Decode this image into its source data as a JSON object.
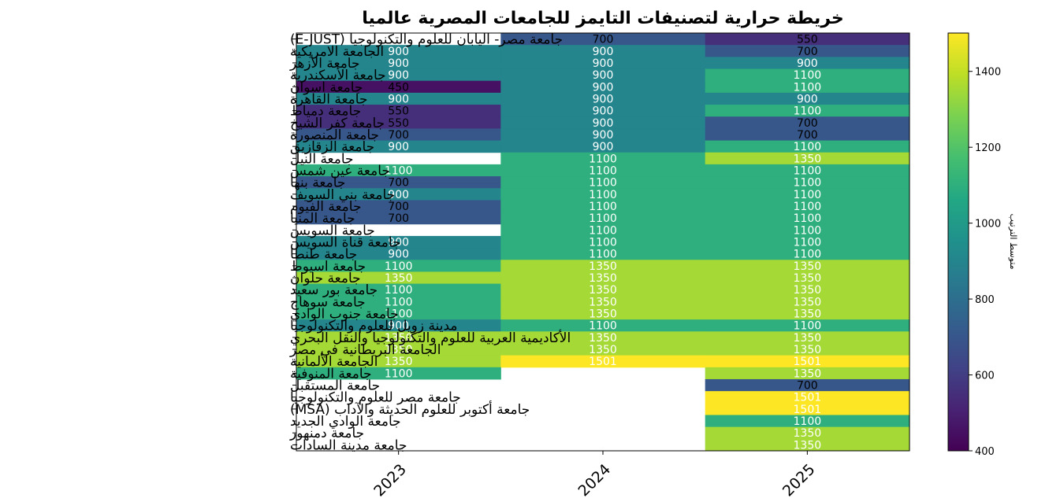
{
  "chart_data": {
    "type": "heatmap",
    "title": "خريطة حرارية لتصنيفات التايمز للجامعات المصرية عالميا",
    "colorbar_label": "متوسط الترتيب",
    "colorbar_range": [
      400,
      1501
    ],
    "colorbar_ticks": [
      400,
      600,
      800,
      1000,
      1200,
      1400
    ],
    "colormap": "viridis",
    "x": [
      "2023",
      "2024",
      "2025"
    ],
    "y": [
      "جامعة مصر- اليابان للعلوم والتكنولوجيا (E-JUST)",
      "الجامعة الامريكية",
      "جامعة الأزهر",
      "جامعة الأسكندرية",
      "جامعة اسوان",
      "جامعة القاهرة",
      "جامعة دمياط",
      "جامعة كفر الشيخ",
      "جامعة المنصورة",
      "جامعة الزقازيق",
      "جامعة النيل",
      "جامعة عين شمس",
      "جامعة بنها",
      "جامعة بني السويف",
      "جامعة الفيوم",
      "جامعة المنيا",
      "جامعة السويس",
      "جامعة قناة السويس",
      "جامعة طنطا",
      "جامعة اسيوط",
      "جامعة حلوان",
      "جامعة بور سعيد",
      "جامعة سوهاج",
      "جامعة جنوب الوادي",
      "مدينة زويل للعلوم والتكنولوجيا",
      "الأكاديمية العربية للعلوم والتكنولوجيا والنقل البحري",
      "الجامعة البريطانية في مصر",
      "الجامعة الألمانية",
      "جامعة المنوفية",
      "جامعة المستقبل",
      "جامعة مصر للعلوم والتكنولوجيا",
      "جامعة أكتوبر للعلوم الحديثة والآداب (MSA)",
      "جامعة الوادي الجديد",
      "جامعة دمنهور",
      "جامعة مدينة السادات"
    ],
    "values": [
      [
        null,
        700,
        550
      ],
      [
        900,
        900,
        700
      ],
      [
        900,
        900,
        900
      ],
      [
        900,
        900,
        1100
      ],
      [
        450,
        900,
        1100
      ],
      [
        900,
        900,
        900
      ],
      [
        550,
        900,
        1100
      ],
      [
        550,
        900,
        700
      ],
      [
        700,
        900,
        700
      ],
      [
        900,
        900,
        1100
      ],
      [
        null,
        1100,
        1350
      ],
      [
        1100,
        1100,
        1100
      ],
      [
        700,
        1100,
        1100
      ],
      [
        900,
        1100,
        1100
      ],
      [
        700,
        1100,
        1100
      ],
      [
        700,
        1100,
        1100
      ],
      [
        null,
        1100,
        1100
      ],
      [
        900,
        1100,
        1100
      ],
      [
        900,
        1100,
        1100
      ],
      [
        1100,
        1350,
        1350
      ],
      [
        1350,
        1350,
        1350
      ],
      [
        1100,
        1350,
        1350
      ],
      [
        1100,
        1350,
        1350
      ],
      [
        1100,
        1350,
        1350
      ],
      [
        900,
        1100,
        1100
      ],
      [
        1350,
        1350,
        1350
      ],
      [
        1350,
        1350,
        1350
      ],
      [
        1350,
        1501,
        1501
      ],
      [
        1100,
        null,
        1350
      ],
      [
        null,
        null,
        700
      ],
      [
        null,
        null,
        1501
      ],
      [
        null,
        null,
        1501
      ],
      [
        null,
        null,
        1100
      ],
      [
        null,
        null,
        1350
      ],
      [
        null,
        null,
        1350
      ]
    ]
  }
}
